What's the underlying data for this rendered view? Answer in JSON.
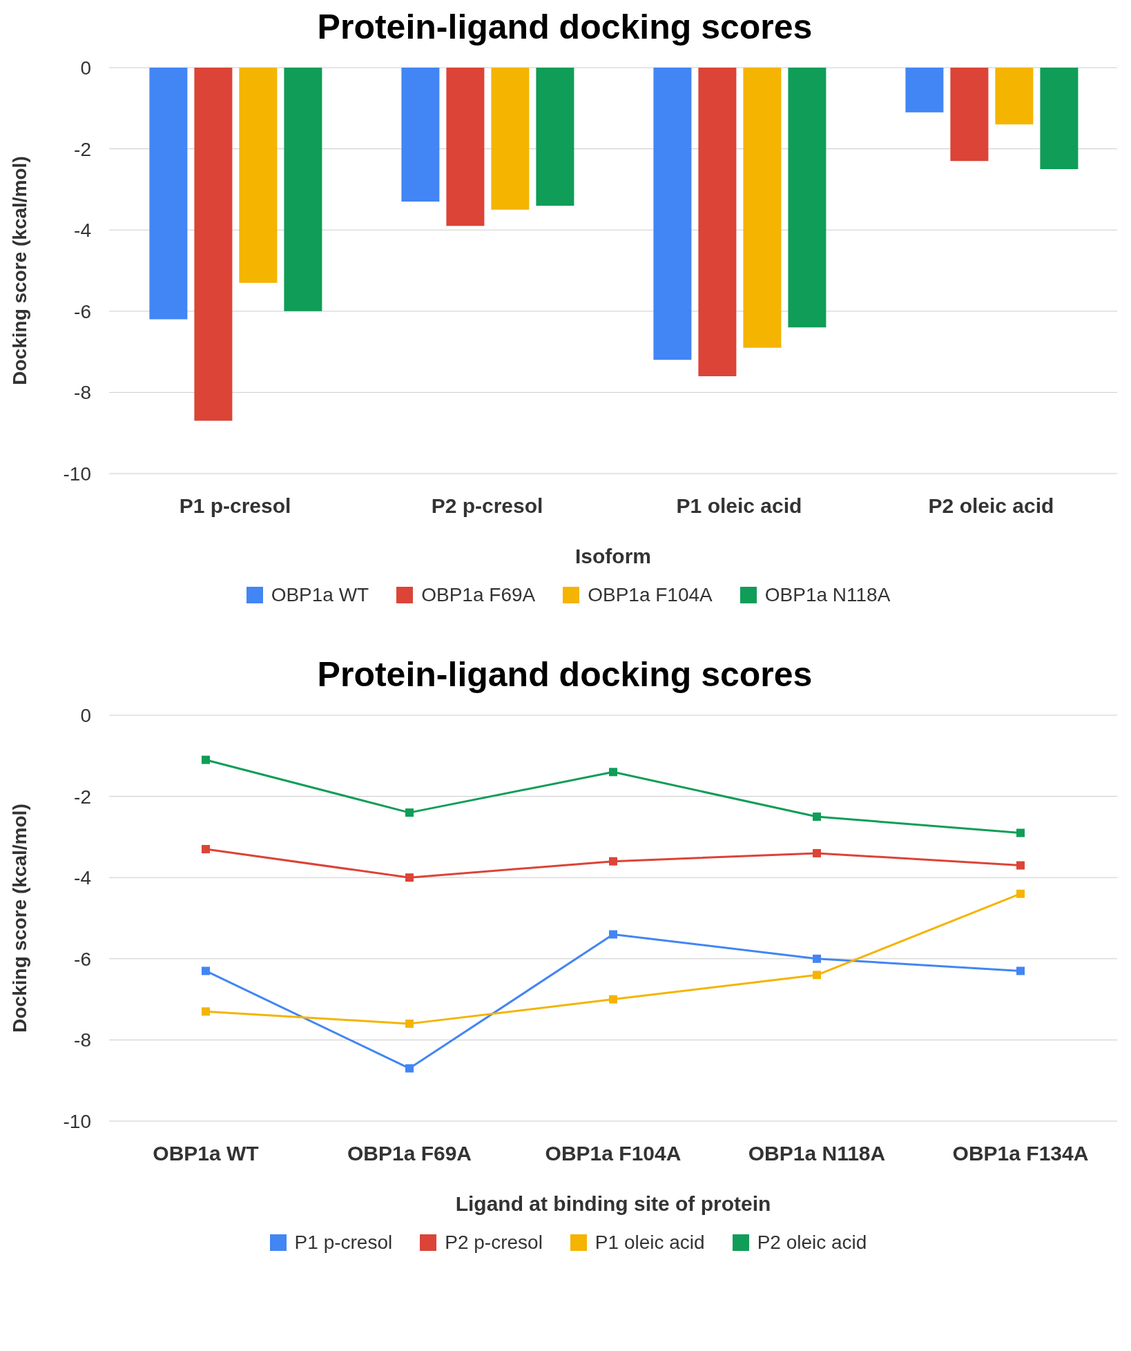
{
  "chart_data": [
    {
      "type": "bar",
      "title": "Protein-ligand docking scores",
      "xlabel": "Isoform",
      "ylabel": "Docking score (kcal/mol)",
      "categories": [
        "P1 p-cresol",
        "P2 p-cresol",
        "P1 oleic acid",
        "P2 oleic acid"
      ],
      "series": [
        {
          "name": "OBP1a WT",
          "color": "#4285f4",
          "values": [
            -6.2,
            -3.3,
            -7.2,
            -1.1
          ]
        },
        {
          "name": "OBP1a F69A",
          "color": "#db4437",
          "values": [
            -8.7,
            -3.9,
            -7.6,
            -2.3
          ]
        },
        {
          "name": "OBP1a F104A",
          "color": "#f4b400",
          "values": [
            -5.3,
            -3.5,
            -6.9,
            -1.4
          ]
        },
        {
          "name": "OBP1a N118A",
          "color": "#0f9d58",
          "values": [
            -6.0,
            -3.4,
            -6.4,
            -2.5
          ]
        }
      ],
      "ylim": [
        -10,
        0
      ],
      "yticks": [
        -10,
        -8,
        -6,
        -4,
        -2,
        0
      ],
      "grid": "y",
      "legend": "bottom"
    },
    {
      "type": "line",
      "title": "Protein-ligand docking scores",
      "xlabel": "Ligand at binding site of  protein",
      "ylabel": "Docking score (kcal/mol)",
      "categories": [
        "OBP1a WT",
        "OBP1a F69A",
        "OBP1a F104A",
        "OBP1a N118A",
        "OBP1a F134A"
      ],
      "series": [
        {
          "name": "P1 p-cresol",
          "color": "#4285f4",
          "values": [
            -6.3,
            -8.7,
            -5.4,
            -6.0,
            -6.3
          ]
        },
        {
          "name": "P2 p-cresol",
          "color": "#db4437",
          "values": [
            -3.3,
            -4.0,
            -3.6,
            -3.4,
            -3.7
          ]
        },
        {
          "name": "P1 oleic acid",
          "color": "#f4b400",
          "values": [
            -7.3,
            -7.6,
            -7.0,
            -6.4,
            -4.4
          ]
        },
        {
          "name": "P2 oleic acid",
          "color": "#0f9d58",
          "values": [
            -1.1,
            -2.4,
            -1.4,
            -2.5,
            -2.9
          ]
        }
      ],
      "ylim": [
        -10,
        0
      ],
      "yticks": [
        -10,
        -8,
        -6,
        -4,
        -2,
        0
      ],
      "grid": "y",
      "legend": "bottom",
      "marker": "square"
    }
  ]
}
